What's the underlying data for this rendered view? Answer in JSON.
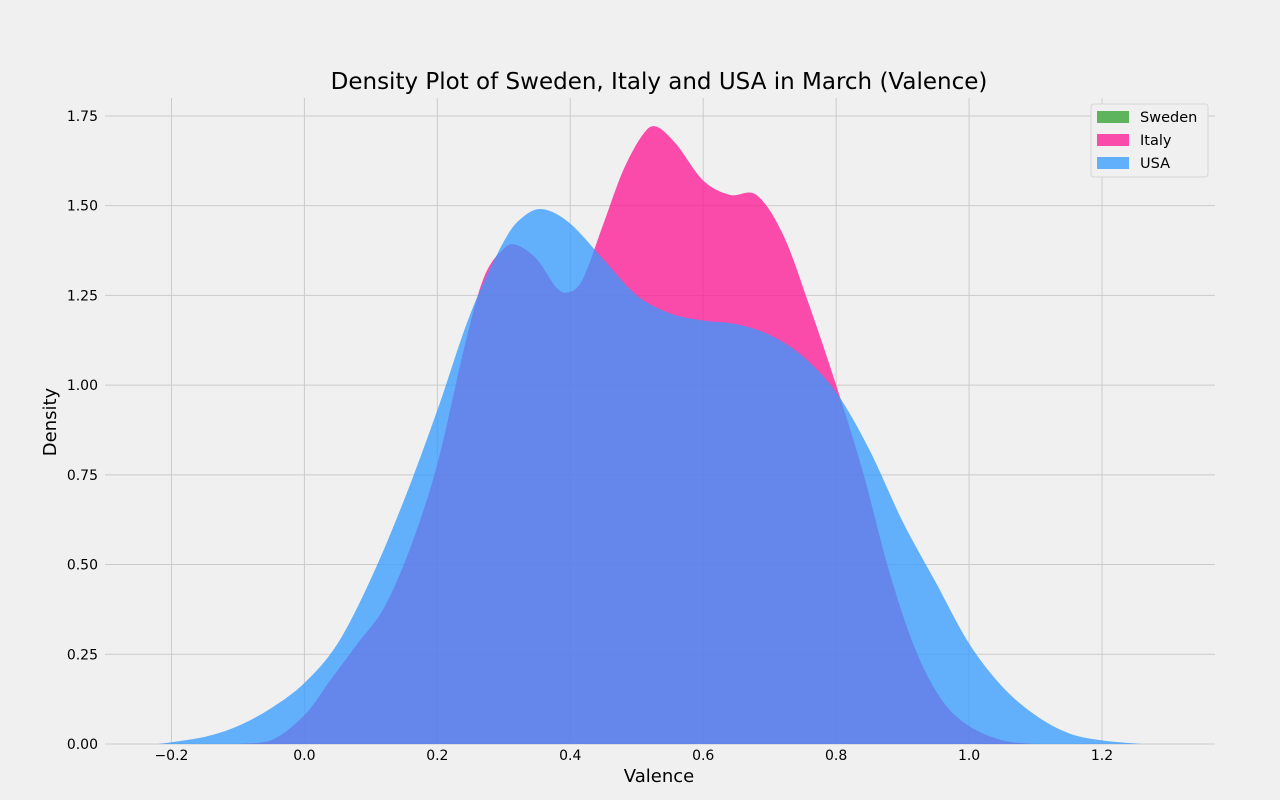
{
  "chart_data": {
    "type": "area",
    "title": "Density Plot of Sweden, Italy and USA in March (Valence)",
    "xlabel": "Valence",
    "ylabel": "Density",
    "xlim": [
      -0.3,
      1.37
    ],
    "ylim": [
      0,
      1.8
    ],
    "xticks": [
      -0.2,
      0.0,
      0.2,
      0.4,
      0.6,
      0.8,
      1.0,
      1.2
    ],
    "xtick_labels": [
      "−0.2",
      "0.0",
      "0.2",
      "0.4",
      "0.6",
      "0.8",
      "1.0",
      "1.2"
    ],
    "yticks": [
      0,
      0.25,
      0.5,
      0.75,
      1.0,
      1.25,
      1.5,
      1.75
    ],
    "ytick_labels": [
      "0.00",
      "0.25",
      "0.50",
      "0.75",
      "1.00",
      "1.25",
      "1.50",
      "1.75"
    ],
    "grid": true,
    "legend_position": "top-right",
    "series": [
      {
        "name": "Sweden",
        "color": "#2ca02c",
        "points": []
      },
      {
        "name": "Italy",
        "color": "#ff1493",
        "points": [
          [
            -0.1,
            0.0
          ],
          [
            -0.05,
            0.01
          ],
          [
            0.0,
            0.08
          ],
          [
            0.04,
            0.18
          ],
          [
            0.08,
            0.28
          ],
          [
            0.12,
            0.38
          ],
          [
            0.16,
            0.55
          ],
          [
            0.2,
            0.78
          ],
          [
            0.24,
            1.1
          ],
          [
            0.27,
            1.3
          ],
          [
            0.3,
            1.38
          ],
          [
            0.32,
            1.39
          ],
          [
            0.35,
            1.35
          ],
          [
            0.38,
            1.27
          ],
          [
            0.4,
            1.26
          ],
          [
            0.42,
            1.3
          ],
          [
            0.45,
            1.45
          ],
          [
            0.48,
            1.6
          ],
          [
            0.51,
            1.7
          ],
          [
            0.53,
            1.72
          ],
          [
            0.56,
            1.67
          ],
          [
            0.6,
            1.57
          ],
          [
            0.64,
            1.53
          ],
          [
            0.68,
            1.53
          ],
          [
            0.72,
            1.42
          ],
          [
            0.76,
            1.22
          ],
          [
            0.8,
            1.0
          ],
          [
            0.84,
            0.76
          ],
          [
            0.88,
            0.48
          ],
          [
            0.92,
            0.26
          ],
          [
            0.96,
            0.12
          ],
          [
            1.0,
            0.05
          ],
          [
            1.05,
            0.01
          ],
          [
            1.1,
            0.0
          ]
        ]
      },
      {
        "name": "USA",
        "color": "#3399ff",
        "points": [
          [
            -0.22,
            0.0
          ],
          [
            -0.15,
            0.02
          ],
          [
            -0.1,
            0.05
          ],
          [
            -0.05,
            0.1
          ],
          [
            0.0,
            0.17
          ],
          [
            0.05,
            0.28
          ],
          [
            0.1,
            0.46
          ],
          [
            0.15,
            0.68
          ],
          [
            0.2,
            0.93
          ],
          [
            0.25,
            1.2
          ],
          [
            0.3,
            1.4
          ],
          [
            0.33,
            1.47
          ],
          [
            0.36,
            1.49
          ],
          [
            0.4,
            1.45
          ],
          [
            0.45,
            1.35
          ],
          [
            0.5,
            1.25
          ],
          [
            0.55,
            1.2
          ],
          [
            0.6,
            1.18
          ],
          [
            0.65,
            1.17
          ],
          [
            0.7,
            1.14
          ],
          [
            0.75,
            1.08
          ],
          [
            0.8,
            0.98
          ],
          [
            0.85,
            0.82
          ],
          [
            0.9,
            0.62
          ],
          [
            0.95,
            0.45
          ],
          [
            1.0,
            0.28
          ],
          [
            1.05,
            0.16
          ],
          [
            1.1,
            0.08
          ],
          [
            1.15,
            0.03
          ],
          [
            1.2,
            0.01
          ],
          [
            1.26,
            0.0
          ]
        ]
      }
    ]
  }
}
